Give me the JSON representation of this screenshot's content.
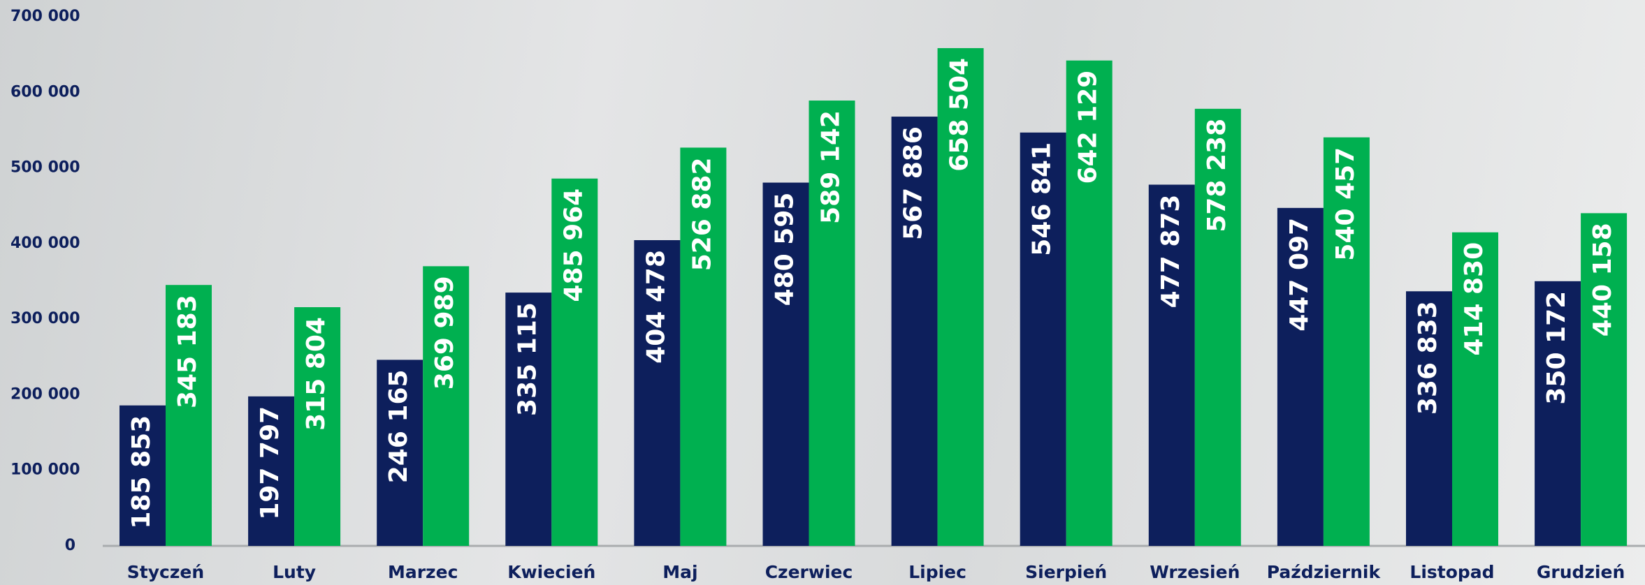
{
  "chart_data": {
    "type": "bar",
    "categories": [
      "Styczeń",
      "Luty",
      "Marzec",
      "Kwiecień",
      "Maj",
      "Czerwiec",
      "Lipiec",
      "Sierpień",
      "Wrzesień",
      "Październik",
      "Listopad",
      "Grudzień"
    ],
    "series": [
      {
        "color": "#0d1f5c",
        "values": [
          185853,
          197797,
          246165,
          335115,
          404478,
          480595,
          567886,
          546841,
          477873,
          447097,
          336833,
          350172
        ],
        "value_labels": [
          "185 853",
          "197 797",
          "246 165",
          "335 115",
          "404 478",
          "480 595",
          "567 886",
          "546 841",
          "477 873",
          "447 097",
          "336 833",
          "350 172"
        ]
      },
      {
        "color": "#00b050",
        "values": [
          345183,
          315804,
          369989,
          485964,
          526882,
          589142,
          658504,
          642129,
          578238,
          540457,
          414830,
          440158
        ],
        "value_labels": [
          "345 183",
          "315 804",
          "369 989",
          "485 964",
          "526 882",
          "589 142",
          "658 504",
          "642 129",
          "578 238",
          "540 457",
          "414 830",
          "440 158"
        ]
      }
    ],
    "ylim": [
      0,
      700000
    ],
    "yticks": [
      0,
      {
        "value": 100000,
        "label": "100 000"
      },
      {
        "value": 200000,
        "label": "200 000"
      },
      {
        "value": 300000,
        "label": "300 000"
      },
      {
        "value": 400000,
        "label": "400 000"
      },
      {
        "value": 500000,
        "label": "500 000"
      },
      {
        "value": 600000,
        "label": "600 000"
      },
      {
        "value": 700000,
        "label": "700 000"
      }
    ],
    "grid": false
  }
}
